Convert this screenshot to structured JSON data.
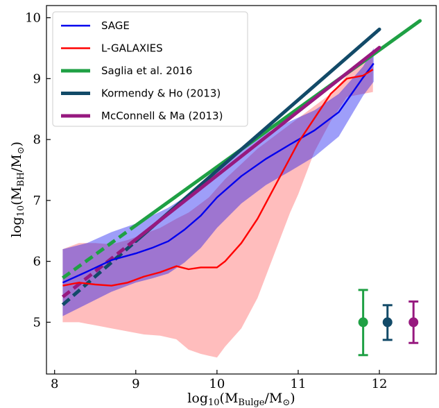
{
  "chart_data": {
    "type": "line",
    "xlabel": "log10(M_Bulge/M_⊙)",
    "ylabel": "log10(M_BH/M_⊙)",
    "xlim": [
      7.9,
      12.7
    ],
    "ylim": [
      4.15,
      10.2
    ],
    "xticks": [
      "8",
      "9",
      "10",
      "11",
      "12"
    ],
    "yticks": [
      "5",
      "6",
      "7",
      "8",
      "9",
      "10"
    ],
    "legend_placement": "top-left",
    "series": [
      {
        "name": "SAGE",
        "color": "#0000ee",
        "style": "line",
        "x": [
          8.1,
          8.4,
          8.7,
          9.0,
          9.2,
          9.4,
          9.6,
          9.8,
          10.0,
          10.3,
          10.6,
          10.9,
          11.2,
          11.5,
          11.8,
          11.93
        ],
        "y": [
          5.65,
          5.83,
          6.02,
          6.13,
          6.22,
          6.33,
          6.52,
          6.75,
          7.05,
          7.4,
          7.68,
          7.92,
          8.15,
          8.45,
          9.02,
          9.25
        ],
        "band_upper": [
          6.2,
          6.3,
          6.48,
          6.62,
          6.75,
          6.88,
          7.05,
          7.25,
          7.5,
          7.82,
          8.1,
          8.3,
          8.48,
          8.75,
          9.2,
          9.5
        ],
        "band_lower": [
          5.1,
          5.3,
          5.5,
          5.65,
          5.72,
          5.8,
          5.98,
          6.22,
          6.55,
          6.95,
          7.25,
          7.48,
          7.72,
          8.05,
          8.72,
          8.95
        ]
      },
      {
        "name": "L-GALAXIES",
        "color": "#ff0000",
        "style": "line",
        "x": [
          8.1,
          8.3,
          8.5,
          8.7,
          8.9,
          9.1,
          9.3,
          9.5,
          9.65,
          9.8,
          9.9,
          10.0,
          10.1,
          10.3,
          10.5,
          10.7,
          10.9,
          11.0,
          11.2,
          11.4,
          11.6,
          11.8,
          11.92
        ],
        "y": [
          5.6,
          5.65,
          5.62,
          5.6,
          5.65,
          5.75,
          5.82,
          5.92,
          5.87,
          5.9,
          5.9,
          5.9,
          6.0,
          6.3,
          6.7,
          7.2,
          7.7,
          7.95,
          8.35,
          8.75,
          9.0,
          9.05,
          9.15
        ],
        "band_upper": [
          6.2,
          6.3,
          6.3,
          6.28,
          6.35,
          6.45,
          6.55,
          6.7,
          6.8,
          6.95,
          7.05,
          7.2,
          7.35,
          7.6,
          7.85,
          8.05,
          8.25,
          8.35,
          8.55,
          8.75,
          9.05,
          9.3,
          9.45
        ],
        "band_lower": [
          5.0,
          5.0,
          4.95,
          4.9,
          4.85,
          4.8,
          4.78,
          4.72,
          4.55,
          4.48,
          4.45,
          4.42,
          4.6,
          4.9,
          5.4,
          6.1,
          6.8,
          7.1,
          7.8,
          8.3,
          8.7,
          8.75,
          8.78
        ]
      },
      {
        "name": "Saglia et al. 2016",
        "color": "#1fa044",
        "style": "fit",
        "x_solid": [
          9.0,
          12.5
        ],
        "x_dashed": [
          8.1,
          9.0
        ],
        "slope": 0.96,
        "intercept": -2.05,
        "error_bar": {
          "x": 11.8,
          "y": 5.0,
          "lower": 4.46,
          "upper": 5.53
        }
      },
      {
        "name": "Kormendy & Ho (2013)",
        "color": "#124a68",
        "style": "fit",
        "x_solid": [
          9.0,
          12.0
        ],
        "x_dashed": [
          8.1,
          9.0
        ],
        "slope": 1.16,
        "intercept": -4.11,
        "error_bar": {
          "x": 12.1,
          "y": 5.0,
          "lower": 4.71,
          "upper": 5.28
        }
      },
      {
        "name": "McConnell & Ma (2013)",
        "color": "#97197f",
        "style": "fit",
        "x_solid": [
          9.0,
          12.0
        ],
        "x_dashed": [
          8.1,
          9.0
        ],
        "slope": 1.05,
        "intercept": -3.09,
        "error_bar": {
          "x": 12.42,
          "y": 5.0,
          "lower": 4.66,
          "upper": 5.34
        }
      }
    ]
  }
}
